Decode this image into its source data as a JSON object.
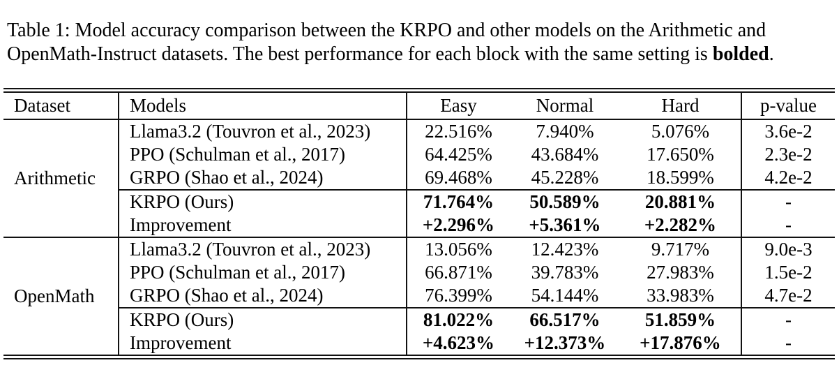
{
  "caption": {
    "line1": "Table 1: Model accuracy comparison between the KRPO and other models on the Arithmetic and",
    "line2_before_bold": "OpenMath-Instruct datasets. The best performance for each block with the same setting is ",
    "bold_word": "bolded",
    "line2_suffix": "."
  },
  "table": {
    "columns": [
      "Dataset",
      "Models",
      "Easy",
      "Normal",
      "Hard",
      "p-value"
    ],
    "blocks": [
      {
        "dataset": "Arithmetic",
        "rows": [
          {
            "model": "Llama3.2 (Touvron et al., 2023)",
            "easy": "22.516%",
            "normal": "7.940%",
            "hard": "5.076%",
            "p": "3.6e-2"
          },
          {
            "model": "PPO (Schulman et al., 2017)",
            "easy": "64.425%",
            "normal": "43.684%",
            "hard": "17.650%",
            "p": "2.3e-2"
          },
          {
            "model": "GRPO (Shao et al., 2024)",
            "easy": "69.468%",
            "normal": "45.228%",
            "hard": "18.599%",
            "p": "4.2e-2"
          },
          {
            "model": "KRPO (Ours)",
            "easy": "71.764%",
            "normal": "50.589%",
            "hard": "20.881%",
            "p": "-"
          },
          {
            "model": "Improvement",
            "easy": "+2.296%",
            "normal": "+5.361%",
            "hard": "+2.282%",
            "p": "-"
          }
        ]
      },
      {
        "dataset": "OpenMath",
        "rows": [
          {
            "model": "Llama3.2 (Touvron et al., 2023)",
            "easy": "13.056%",
            "normal": "12.423%",
            "hard": "9.717%",
            "p": "9.0e-3"
          },
          {
            "model": "PPO (Schulman et al., 2017)",
            "easy": "66.871%",
            "normal": "39.783%",
            "hard": "27.983%",
            "p": "1.5e-2"
          },
          {
            "model": "GRPO (Shao et al., 2024)",
            "easy": "76.399%",
            "normal": "54.144%",
            "hard": "33.983%",
            "p": "4.7e-2"
          },
          {
            "model": "KRPO (Ours)",
            "easy": "81.022%",
            "normal": "66.517%",
            "hard": "51.859%",
            "p": "-"
          },
          {
            "model": "Improvement",
            "easy": "+4.623%",
            "normal": "+12.373%",
            "hard": "+17.876%",
            "p": "-"
          }
        ]
      }
    ],
    "text_color": "#000000",
    "rule_color": "#111111",
    "background_color": "#ffffff"
  }
}
